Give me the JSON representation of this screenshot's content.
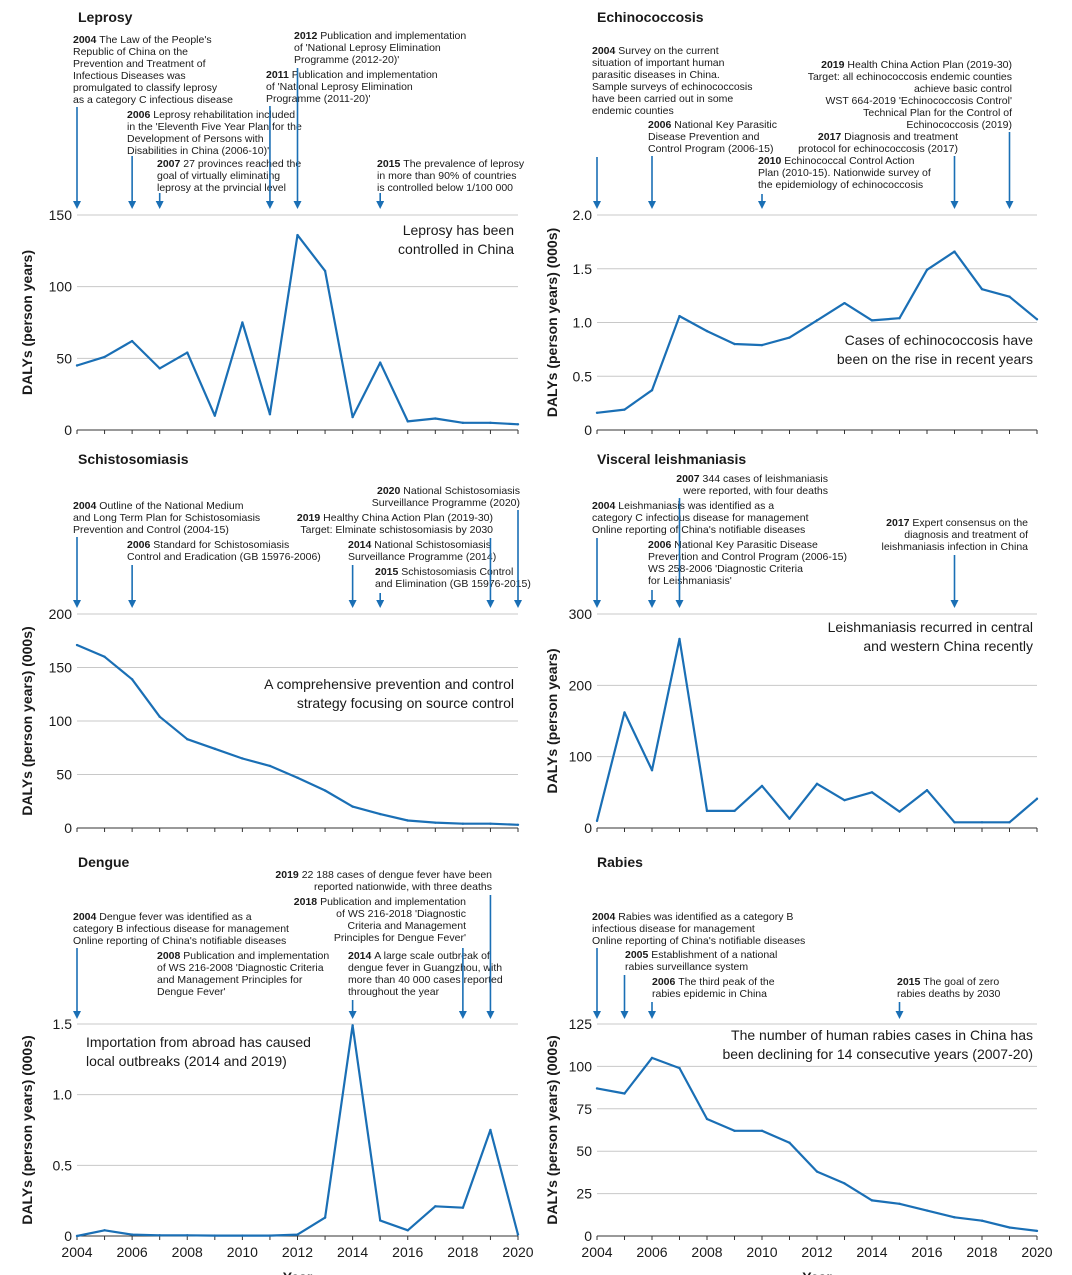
{
  "style": {
    "line_color": "#1a6fb5",
    "grid_color": "#c8c8c8",
    "axis_color": "#333333",
    "text_color": "#1a1a1a"
  },
  "chart_data": [
    {
      "type": "line",
      "title": "Leprosy",
      "ylabel": "DALYs (person years)",
      "xlabel": "",
      "ylim": [
        0,
        150
      ],
      "yticks": [
        0,
        50,
        100,
        150
      ],
      "xlim": [
        2004,
        2020
      ],
      "x": [
        2004,
        2005,
        2006,
        2007,
        2008,
        2009,
        2010,
        2011,
        2012,
        2013,
        2014,
        2015,
        2016,
        2017,
        2018,
        2019,
        2020
      ],
      "values": [
        45,
        51,
        62,
        43,
        54,
        10,
        75,
        11,
        136,
        111,
        9,
        47,
        6,
        8,
        5,
        5,
        4
      ],
      "annotation": [
        "Leprosy has been",
        "controlled in China"
      ],
      "events": [
        {
          "year": "2004",
          "text": [
            "The Law of the People's",
            "Republic of China on the",
            "Prevention and Treatment of",
            "Infectious Diseases was",
            "promulgated to classify leprosy",
            "as a category C infectious disease"
          ]
        },
        {
          "year": "2006",
          "text": [
            "Leprosy rehabilitation included",
            "in the 'Eleventh Five Year Plan for the",
            "Development of Persons with",
            "Disabilities in China (2006-10)'"
          ]
        },
        {
          "year": "2007",
          "text": [
            "27 provinces reached the",
            "goal of virtually eliminating",
            "leprosy at the prvincial level"
          ]
        },
        {
          "year": "2011",
          "text": [
            "Publication and implementation",
            "of 'National Leprosy Elimination",
            "Programme (2011-20)'"
          ]
        },
        {
          "year": "2012",
          "text": [
            "Publication and implementation",
            "of 'National Leprosy Elimination",
            "Programme (2012-20)'"
          ]
        },
        {
          "year": "2015",
          "text": [
            "The prevalence of leprosy",
            "in more than 90% of countries",
            "is controlled below 1/100 000"
          ]
        }
      ]
    },
    {
      "type": "line",
      "title": "Echinococcosis",
      "ylabel": "DALYs (person years) (000s)",
      "xlabel": "",
      "ylim": [
        0,
        2.0
      ],
      "yticks": [
        "0",
        "0.5",
        "1.0",
        "1.5",
        "2.0"
      ],
      "xlim": [
        2004,
        2020
      ],
      "x": [
        2004,
        2005,
        2006,
        2007,
        2008,
        2009,
        2010,
        2011,
        2012,
        2013,
        2014,
        2015,
        2016,
        2017,
        2018,
        2019,
        2020
      ],
      "values": [
        0.16,
        0.19,
        0.37,
        1.06,
        0.92,
        0.8,
        0.79,
        0.86,
        1.02,
        1.18,
        1.02,
        1.04,
        1.49,
        1.66,
        1.31,
        1.24,
        1.03
      ],
      "annotation": [
        "Cases of echinococcosis have",
        "been on the rise in recent years"
      ],
      "events": [
        {
          "year": "2004",
          "text": [
            "Survey on the current",
            "situation of important human",
            "parasitic diseases in China.",
            "Sample surveys of echinococcosis",
            "have been carried out in some",
            "endemic counties"
          ]
        },
        {
          "year": "2006",
          "text": [
            "National Key Parasitic",
            "Disease Prevention and",
            "Control Program (2006-15)"
          ]
        },
        {
          "year": "2010",
          "text": [
            "Echinococcal Control Action",
            "Plan (2010-15). Nationwide survey of",
            "the epidemiology of echinococcosis"
          ]
        },
        {
          "year": "2017",
          "text": [
            "Diagnosis and treatment",
            "protocol for echinococcosis (2017)"
          ]
        },
        {
          "year": "2019",
          "text": [
            "Health China Action Plan (2019-30)",
            "Target: all echinococcosis endemic counties",
            "achieve basic control",
            "WST 664-2019 'Echinococcosis Control'",
            "Technical Plan for the Control of",
            "Echinococcosis (2019)"
          ]
        }
      ]
    },
    {
      "type": "line",
      "title": "Schistosomiasis",
      "ylabel": "DALYs (person years) (000s)",
      "xlabel": "",
      "ylim": [
        0,
        200
      ],
      "yticks": [
        0,
        50,
        100,
        150,
        200
      ],
      "xlim": [
        2004,
        2020
      ],
      "x": [
        2004,
        2005,
        2006,
        2007,
        2008,
        2009,
        2010,
        2011,
        2012,
        2013,
        2014,
        2015,
        2016,
        2017,
        2018,
        2019,
        2020
      ],
      "values": [
        171,
        160,
        139,
        104,
        83,
        74,
        65,
        58,
        47,
        35,
        20,
        13,
        7,
        5,
        4,
        4,
        3
      ],
      "annotation": [
        "A comprehensive prevention and control",
        "strategy focusing on source control"
      ],
      "events": [
        {
          "year": "2004",
          "text": [
            "Outline of the National Medium",
            "and Long Term Plan for Schistosomiasis",
            "Prevention and Control (2004-15)"
          ]
        },
        {
          "year": "2006",
          "text": [
            "Standard for Schistosomiasis",
            "Control and Eradication (GB 15976-2006)"
          ]
        },
        {
          "year": "2014",
          "text": [
            "National Schistosomiasis",
            "Surveillance Programme (2014)"
          ]
        },
        {
          "year": "2015",
          "text": [
            "Schistosomiasis Control",
            "and Elimination (GB 15976-2015)"
          ]
        },
        {
          "year": "2019",
          "text": [
            "Healthy China Action Plan (2019-30)",
            "Target: Elminate schistosomiasis by 2030"
          ]
        },
        {
          "year": "2020",
          "text": [
            "National Schistosomiasis",
            "Surveillance Programme (2020)"
          ]
        }
      ]
    },
    {
      "type": "line",
      "title": "Visceral leishmaniasis",
      "ylabel": "DALYs (person years)",
      "xlabel": "",
      "ylim": [
        0,
        300
      ],
      "yticks": [
        0,
        100,
        200,
        300
      ],
      "xlim": [
        2004,
        2020
      ],
      "x": [
        2004,
        2005,
        2006,
        2007,
        2008,
        2009,
        2010,
        2011,
        2012,
        2013,
        2014,
        2015,
        2016,
        2017,
        2018,
        2019,
        2020
      ],
      "values": [
        10,
        162,
        81,
        265,
        24,
        24,
        59,
        13,
        62,
        39,
        50,
        23,
        53,
        8,
        8,
        8,
        41
      ],
      "annotation": [
        "Leishmaniasis recurred in central",
        "and western China recently"
      ],
      "events": [
        {
          "year": "2004",
          "text": [
            "Leishmaniasis was identified as a",
            "category C infectious disease for management",
            "Online reporting of China's notifiable diseases"
          ]
        },
        {
          "year": "2006",
          "text": [
            "National Key Parasitic Disease",
            "Prevention and Control Program (2006-15)",
            "WS 258-2006 'Diagnostic Criteria",
            "for Leishmaniasis'"
          ]
        },
        {
          "year": "2007",
          "text": [
            "344 cases of leishmaniasis",
            "were reported, with four deaths"
          ]
        },
        {
          "year": "2017",
          "text": [
            "Expert consensus on the",
            "diagnosis and treatment of",
            "leishmaniasis infection in China"
          ]
        }
      ]
    },
    {
      "type": "line",
      "title": "Dengue",
      "ylabel": "DALYs (person years) (000s)",
      "xlabel": "Year",
      "ylim": [
        0,
        1.5
      ],
      "yticks": [
        "0",
        "0.5",
        "1.0",
        "1.5"
      ],
      "xlim": [
        2004,
        2020
      ],
      "xticks": [
        "2004",
        "2006",
        "2008",
        "2010",
        "2012",
        "2014",
        "2016",
        "2018",
        "2020"
      ],
      "x": [
        2004,
        2005,
        2006,
        2007,
        2008,
        2009,
        2010,
        2011,
        2012,
        2013,
        2014,
        2015,
        2016,
        2017,
        2018,
        2019,
        2020
      ],
      "values": [
        0.0,
        0.04,
        0.01,
        0.005,
        0.005,
        0.003,
        0.003,
        0.003,
        0.01,
        0.13,
        1.49,
        0.11,
        0.04,
        0.21,
        0.2,
        0.75,
        0.01
      ],
      "annotation": [
        "Importation from abroad has caused",
        "local outbreaks (2014 and 2019)"
      ],
      "events": [
        {
          "year": "2004",
          "text": [
            "Dengue fever was identified as a",
            "category B infectious disease for management",
            "Online reporting of China's notifiable diseases"
          ]
        },
        {
          "year": "2008",
          "text": [
            "Publication and implementation",
            "of WS 216-2008 'Diagnostic Criteria",
            "and Management Principles for",
            "Dengue Fever'"
          ]
        },
        {
          "year": "2014",
          "text": [
            "A large scale outbreak of",
            "dengue fever in Guangzhou, with",
            "more than 40 000 cases reported",
            "throughout the year"
          ]
        },
        {
          "year": "2018",
          "text": [
            "Publication and implementation",
            "of WS 216-2018 'Diagnostic",
            "Criteria and Management",
            "Principles for Dengue Fever'"
          ]
        },
        {
          "year": "2019",
          "text": [
            "22 188 cases of dengue fever have been",
            "reported nationwide, with three deaths"
          ]
        }
      ]
    },
    {
      "type": "line",
      "title": "Rabies",
      "ylabel": "DALYs (person years) (000s)",
      "xlabel": "Year",
      "ylim": [
        0,
        125
      ],
      "yticks": [
        0,
        25,
        50,
        75,
        100,
        125
      ],
      "xlim": [
        2004,
        2020
      ],
      "xticks": [
        "2004",
        "2006",
        "2008",
        "2010",
        "2012",
        "2014",
        "2016",
        "2018",
        "2020"
      ],
      "x": [
        2004,
        2005,
        2006,
        2007,
        2008,
        2009,
        2010,
        2011,
        2012,
        2013,
        2014,
        2015,
        2016,
        2017,
        2018,
        2019,
        2020
      ],
      "values": [
        87,
        84,
        105,
        99,
        69,
        62,
        62,
        55,
        38,
        31,
        21,
        19,
        15,
        11,
        9,
        5,
        3
      ],
      "annotation": [
        "The number of human rabies cases in China has",
        "been declining for 14 consecutive years (2007-20)"
      ],
      "events": [
        {
          "year": "2004",
          "text": [
            "Rabies was identified as a category B",
            "infectious disease for management",
            "Online reporting of China's notifiable diseases"
          ]
        },
        {
          "year": "2005",
          "text": [
            "Establishment of a national",
            "rabies surveillance system"
          ]
        },
        {
          "year": "2006",
          "text": [
            "The third peak of the",
            "rabies epidemic in China"
          ]
        },
        {
          "year": "2015",
          "text": [
            "The goal of zero",
            "rabies deaths by 2030"
          ]
        }
      ]
    }
  ]
}
